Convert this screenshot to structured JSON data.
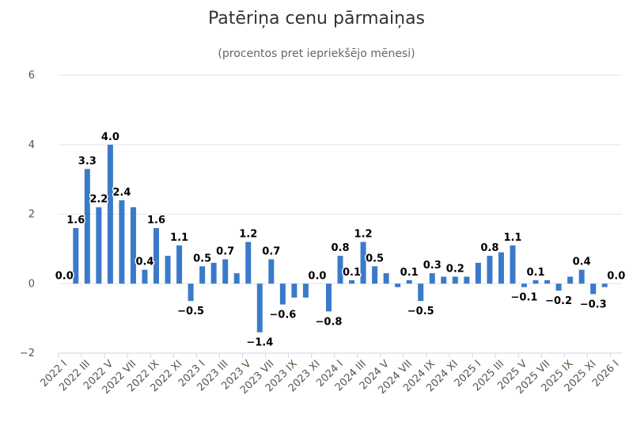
{
  "chart_data": {
    "type": "bar",
    "title": "Patēriņa cenu pārmaiņas",
    "subtitle": "(procentos pret iepriekšējo mēnesi)",
    "xlabel": "",
    "ylabel": "",
    "ylim": [
      -2,
      6
    ],
    "yticks": [
      -2,
      0,
      2,
      4,
      6
    ],
    "grid": true,
    "bar_color": "#3a7ac9",
    "categories": [
      "2022 I",
      "2022 II",
      "2022 III",
      "2022 IV",
      "2022 V",
      "2022 VI",
      "2022 VII",
      "2022 VIII",
      "2022 IX",
      "2022 X",
      "2022 XI",
      "2022 XII",
      "2023 I",
      "2023 II",
      "2023 III",
      "2023 IV",
      "2023 V",
      "2023 VI",
      "2023 VII",
      "2023 VIII",
      "2023 IX",
      "2023 X",
      "2023 XI",
      "2023 XII",
      "2024 I",
      "2024 II",
      "2024 III",
      "2024 IV",
      "2024 V",
      "2024 VI",
      "2024 VII",
      "2024 VIII",
      "2024 IX",
      "2024 X",
      "2024 XI",
      "2024 XII",
      "2025 I",
      "2025 II",
      "2025 III",
      "2025 IV",
      "2025 V",
      "2025 VI",
      "2025 VII",
      "2025 VIII",
      "2025 IX",
      "2025 X",
      "2025 XI",
      "2025 XII",
      "2026 I"
    ],
    "x_tick_labels": [
      "2022 I",
      "2022 III",
      "2022 V",
      "2022 VII",
      "2022 IX",
      "2022 XI",
      "2023 I",
      "2023 III",
      "2023 V",
      "2023 VII",
      "2023 IX",
      "2023 XI",
      "2024 I",
      "2024 III",
      "2024 V",
      "2024 VII",
      "2024 IX",
      "2024 XI",
      "2025 I",
      "2025 III",
      "2025 V",
      "2025 VII",
      "2025 IX",
      "2025 XI",
      "2026 I"
    ],
    "values": [
      0.0,
      1.6,
      3.3,
      2.2,
      4.0,
      2.4,
      2.2,
      0.4,
      1.6,
      0.8,
      1.1,
      -0.5,
      0.5,
      0.6,
      0.7,
      0.3,
      1.2,
      -1.4,
      0.7,
      -0.6,
      -0.4,
      -0.4,
      0.0,
      -0.8,
      0.8,
      0.1,
      1.2,
      0.5,
      0.3,
      -0.1,
      0.1,
      -0.5,
      0.3,
      0.2,
      0.2,
      0.2,
      0.6,
      0.8,
      0.9,
      1.1,
      -0.1,
      0.1,
      0.1,
      -0.2,
      0.2,
      0.4,
      -0.3,
      -0.1,
      0.0
    ],
    "data_labels": [
      {
        "index": 0,
        "text": "0.0"
      },
      {
        "index": 1,
        "text": "1.6"
      },
      {
        "index": 2,
        "text": "3.3"
      },
      {
        "index": 3,
        "text": "2.2"
      },
      {
        "index": 4,
        "text": "4.0"
      },
      {
        "index": 5,
        "text": "2.4"
      },
      {
        "index": 7,
        "text": "0.4"
      },
      {
        "index": 8,
        "text": "1.6"
      },
      {
        "index": 10,
        "text": "1.1"
      },
      {
        "index": 11,
        "text": "−0.5"
      },
      {
        "index": 12,
        "text": "0.5"
      },
      {
        "index": 14,
        "text": "0.7"
      },
      {
        "index": 16,
        "text": "1.2"
      },
      {
        "index": 17,
        "text": "−1.4"
      },
      {
        "index": 18,
        "text": "0.7"
      },
      {
        "index": 19,
        "text": "−0.6"
      },
      {
        "index": 22,
        "text": "0.0"
      },
      {
        "index": 23,
        "text": "−0.8"
      },
      {
        "index": 24,
        "text": "0.8"
      },
      {
        "index": 25,
        "text": "0.1"
      },
      {
        "index": 26,
        "text": "1.2"
      },
      {
        "index": 27,
        "text": "0.5"
      },
      {
        "index": 30,
        "text": "0.1"
      },
      {
        "index": 31,
        "text": "−0.5"
      },
      {
        "index": 32,
        "text": "0.3"
      },
      {
        "index": 34,
        "text": "0.2"
      },
      {
        "index": 37,
        "text": "0.8"
      },
      {
        "index": 39,
        "text": "1.1"
      },
      {
        "index": 40,
        "text": "−0.1"
      },
      {
        "index": 41,
        "text": "0.1"
      },
      {
        "index": 43,
        "text": "−0.2"
      },
      {
        "index": 45,
        "text": "0.4"
      },
      {
        "index": 46,
        "text": "−0.3"
      },
      {
        "index": 48,
        "text": "0.0"
      }
    ]
  }
}
